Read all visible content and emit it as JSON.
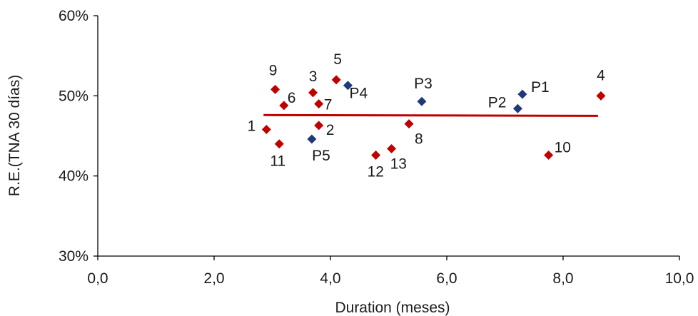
{
  "chart_data": {
    "type": "scatter",
    "xlabel": "Duration (meses)",
    "ylabel": "R.E.(TNA 30 días)",
    "xlim": [
      0,
      10
    ],
    "ylim": [
      30,
      60
    ],
    "x_ticks": [
      "0,0",
      "2,0",
      "4,0",
      "6,0",
      "8,0",
      "10,0"
    ],
    "y_ticks": [
      "30%",
      "40%",
      "50%",
      "60%"
    ],
    "grid": false,
    "legend": "none",
    "colors": {
      "red_series": "#c00000",
      "blue_series": "#1f3a7a",
      "trend_line": "#c00000",
      "axis": "#000000"
    },
    "series": [
      {
        "color_key": "red_series",
        "points": [
          {
            "label": "1",
            "x": 2.9,
            "y": 45.8
          },
          {
            "label": "2",
            "x": 3.8,
            "y": 46.3
          },
          {
            "label": "3",
            "x": 3.7,
            "y": 50.4
          },
          {
            "label": "4",
            "x": 8.65,
            "y": 50.0
          },
          {
            "label": "5",
            "x": 4.1,
            "y": 52.0
          },
          {
            "label": "6",
            "x": 3.2,
            "y": 48.8
          },
          {
            "label": "7",
            "x": 3.8,
            "y": 49.0
          },
          {
            "label": "8",
            "x": 5.35,
            "y": 46.5
          },
          {
            "label": "9",
            "x": 3.05,
            "y": 50.8
          },
          {
            "label": "10",
            "x": 7.75,
            "y": 42.6
          },
          {
            "label": "11",
            "x": 3.12,
            "y": 44.0
          },
          {
            "label": "12",
            "x": 4.78,
            "y": 42.6
          },
          {
            "label": "13",
            "x": 5.05,
            "y": 43.4
          }
        ]
      },
      {
        "color_key": "blue_series",
        "points": [
          {
            "label": "P1",
            "x": 7.3,
            "y": 50.2
          },
          {
            "label": "P2",
            "x": 7.22,
            "y": 48.4
          },
          {
            "label": "P3",
            "x": 5.57,
            "y": 49.3
          },
          {
            "label": "P4",
            "x": 4.3,
            "y": 51.3
          },
          {
            "label": "P5",
            "x": 3.68,
            "y": 44.6
          }
        ]
      }
    ],
    "trend_line": {
      "points": [
        {
          "x": 2.85,
          "y": 47.6
        },
        {
          "x": 8.6,
          "y": 47.5
        }
      ]
    }
  }
}
